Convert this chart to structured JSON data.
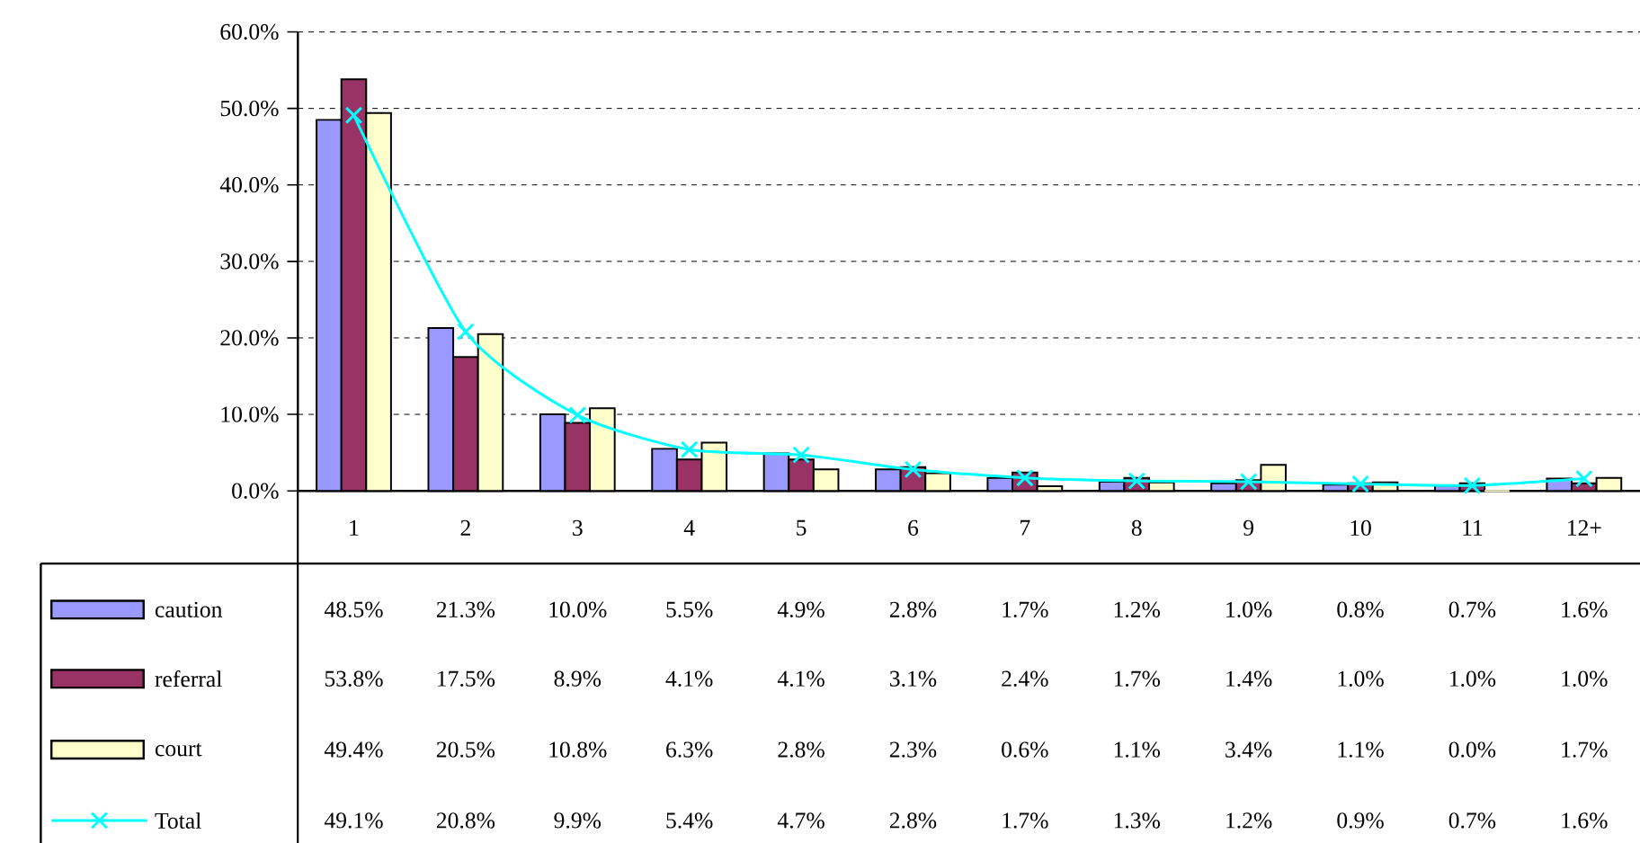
{
  "chart_data": {
    "type": "bar",
    "categories": [
      "1",
      "2",
      "3",
      "4",
      "5",
      "6",
      "7",
      "8",
      "9",
      "10",
      "11",
      "12+"
    ],
    "series": [
      {
        "name": "caution",
        "color": "#9999ff",
        "values": [
          48.5,
          21.3,
          10.0,
          5.5,
          4.9,
          2.8,
          1.7,
          1.2,
          1.0,
          0.8,
          0.7,
          1.6
        ],
        "value_labels": [
          "48.5%",
          "21.3%",
          "10.0%",
          "5.5%",
          "4.9%",
          "2.8%",
          "1.7%",
          "1.2%",
          "1.0%",
          "0.8%",
          "0.7%",
          "1.6%"
        ]
      },
      {
        "name": "referral",
        "color": "#993366",
        "values": [
          53.8,
          17.5,
          8.9,
          4.1,
          4.1,
          3.1,
          2.4,
          1.7,
          1.4,
          1.0,
          1.0,
          1.0
        ],
        "value_labels": [
          "53.8%",
          "17.5%",
          "8.9%",
          "4.1%",
          "4.1%",
          "3.1%",
          "2.4%",
          "1.7%",
          "1.4%",
          "1.0%",
          "1.0%",
          "1.0%"
        ]
      },
      {
        "name": "court",
        "color": "#ffffcc",
        "values": [
          49.4,
          20.5,
          10.8,
          6.3,
          2.8,
          2.3,
          0.6,
          1.1,
          3.4,
          1.1,
          0.0,
          1.7
        ],
        "value_labels": [
          "49.4%",
          "20.5%",
          "10.8%",
          "6.3%",
          "2.8%",
          "2.3%",
          "0.6%",
          "1.1%",
          "3.4%",
          "1.1%",
          "0.0%",
          "1.7%"
        ]
      },
      {
        "name": "Total",
        "type": "line",
        "marker": "cross",
        "color": "#00ffff",
        "values": [
          49.1,
          20.8,
          9.9,
          5.4,
          4.7,
          2.8,
          1.7,
          1.3,
          1.2,
          0.9,
          0.7,
          1.6
        ],
        "value_labels": [
          "49.1%",
          "20.8%",
          "9.9%",
          "5.4%",
          "4.7%",
          "2.8%",
          "1.7%",
          "1.3%",
          "1.2%",
          "0.9%",
          "0.7%",
          "1.6%"
        ]
      }
    ],
    "ylim": [
      0,
      60
    ],
    "yticks": [
      {
        "value": 0,
        "label": "0.0%"
      },
      {
        "value": 10,
        "label": "10.0%"
      },
      {
        "value": 20,
        "label": "20.0%"
      },
      {
        "value": 30,
        "label": "30.0%"
      },
      {
        "value": 40,
        "label": "40.0%"
      },
      {
        "value": 50,
        "label": "50.0%"
      },
      {
        "value": 60,
        "label": "60.0%"
      }
    ],
    "grid": "y",
    "legend": "bottom left"
  }
}
